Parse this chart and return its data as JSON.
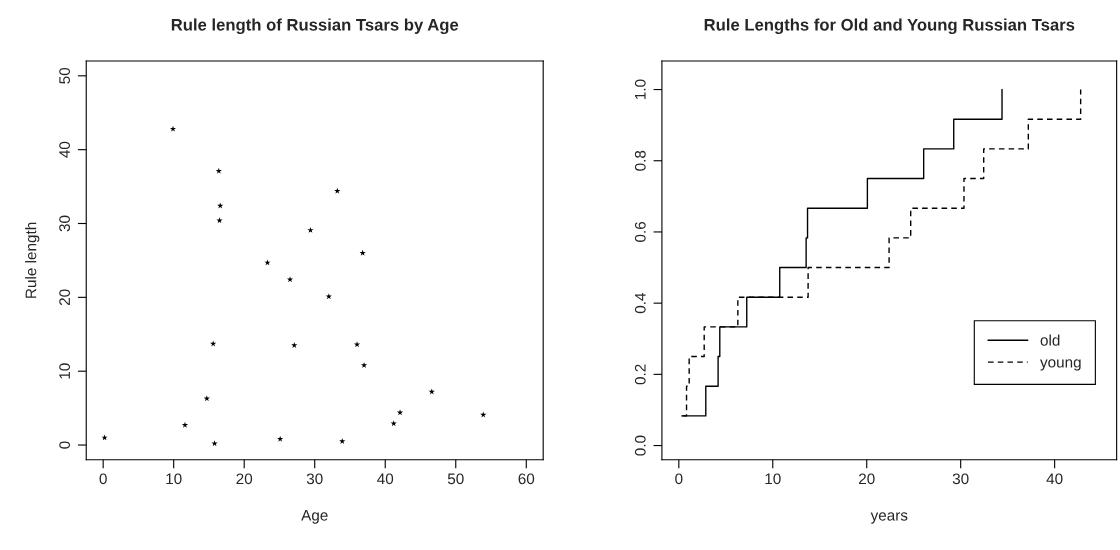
{
  "chart_data": [
    {
      "type": "scatter",
      "title": "Rule length of Russian Tsars by Age",
      "xlabel": "Age",
      "ylabel": "Rule length",
      "marker": "star",
      "grid": false,
      "legend": false,
      "series": [
        {
          "color": "#000000",
          "x": [
            0.2,
            9.9,
            11.6,
            14.7,
            15.6,
            15.8,
            16.4,
            16.6,
            16.5,
            23.3,
            25.1,
            26.5,
            27.1,
            29.4,
            32.0,
            33.2,
            33.9,
            36.0,
            36.8,
            37.0,
            41.2,
            42.1,
            46.6,
            53.9
          ],
          "values": [
            1.0,
            42.8,
            2.7,
            6.3,
            13.7,
            0.2,
            37.1,
            32.4,
            30.4,
            24.7,
            0.8,
            22.4,
            13.5,
            29.1,
            20.1,
            34.4,
            0.5,
            13.6,
            26.0,
            10.8,
            2.9,
            4.4,
            7.2,
            4.1
          ]
        }
      ],
      "xlim": [
        -2.4,
        62.4
      ],
      "ylim": [
        -2.0,
        52.0
      ],
      "xticks": [
        0,
        10,
        20,
        30,
        40,
        50,
        60
      ],
      "yticks": [
        0,
        10,
        20,
        30,
        40,
        50
      ]
    },
    {
      "type": "step",
      "title": "Rule Lengths for Old and Young Russian Tsars",
      "xlabel": "years",
      "grid": false,
      "legend": "bottom right",
      "marker": "none",
      "series": [
        {
          "name": "old",
          "color": "#000000",
          "line_style": "solid",
          "x": [
            0.32,
            2.87,
            4.18,
            4.36,
            7.23,
            10.74,
            13.55,
            13.7,
            20.07,
            26.06,
            29.26,
            34.4
          ],
          "values": [
            0.0833,
            0.1667,
            0.25,
            0.3333,
            0.4167,
            0.5,
            0.5833,
            0.6667,
            0.75,
            0.8333,
            0.9167,
            1.0
          ]
        },
        {
          "name": "young",
          "color": "#000000",
          "line_style": "dashed",
          "x": [
            0.4,
            0.82,
            1.1,
            2.7,
            6.28,
            13.76,
            22.38,
            24.68,
            30.35,
            32.45,
            37.2,
            42.77
          ],
          "values": [
            0.0833,
            0.1667,
            0.25,
            0.3333,
            0.4167,
            0.5,
            0.5833,
            0.6667,
            0.75,
            0.8333,
            0.9167,
            1.0
          ]
        }
      ],
      "xlim": [
        -1.8,
        46.6
      ],
      "ylim": [
        -0.04,
        1.08
      ],
      "xticks": [
        0,
        10,
        20,
        30,
        40
      ],
      "yticks": [
        {
          "value": 0,
          "label": "0.0"
        },
        {
          "value": 0.2,
          "label": "0.2"
        },
        {
          "value": 0.4,
          "label": "0.4"
        },
        {
          "value": 0.6,
          "label": "0.6"
        },
        {
          "value": 0.8,
          "label": "0.8"
        },
        {
          "value": 1.0,
          "label": "1.0"
        }
      ]
    }
  ]
}
